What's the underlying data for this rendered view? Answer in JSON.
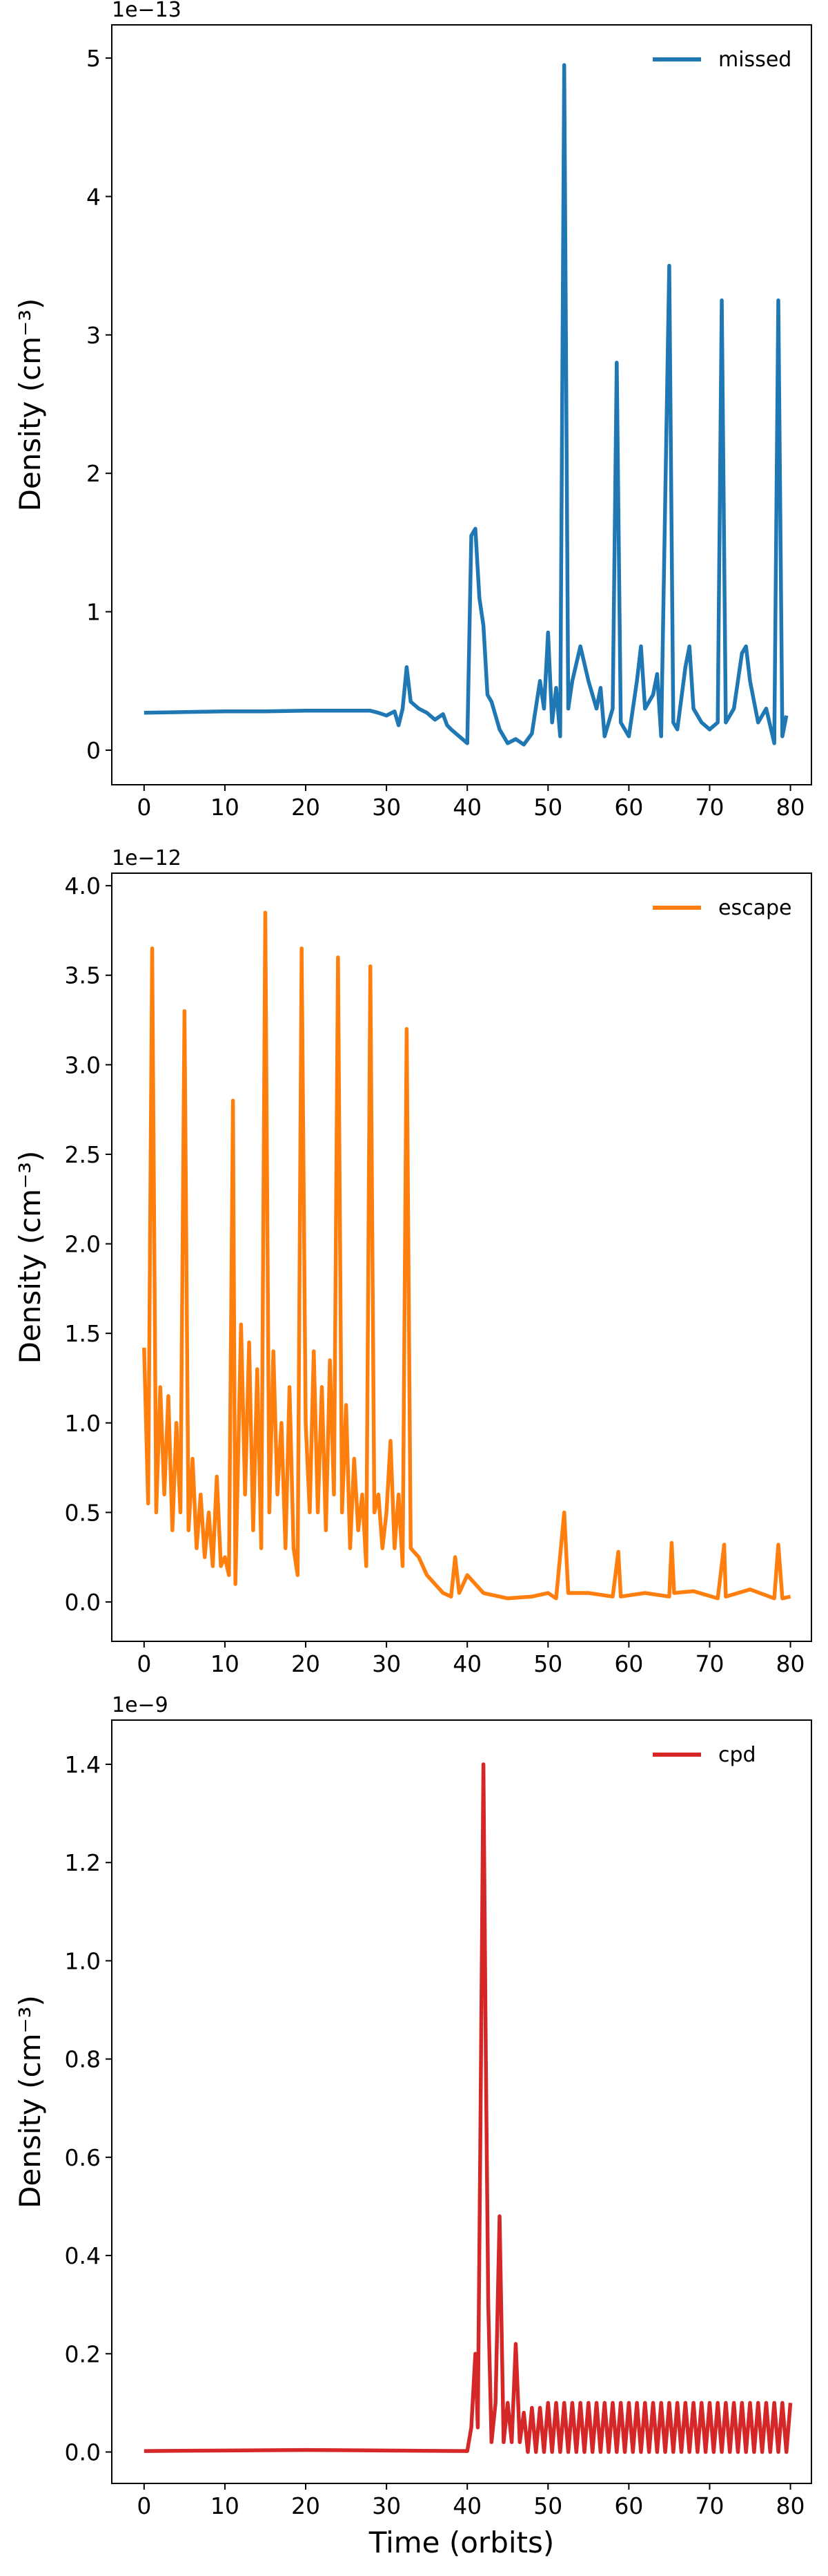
{
  "chart_data": [
    {
      "type": "line",
      "offset_label": "1e−13",
      "ylabel": "Density (cm⁻³)",
      "legend": "upper right",
      "x": [
        0,
        5,
        10,
        15,
        20,
        25,
        28,
        29,
        30,
        31,
        31.5,
        32,
        32.5,
        33,
        34,
        35,
        36,
        37,
        37.5,
        38,
        39,
        40,
        40.5,
        41,
        41.5,
        42,
        42.5,
        43,
        44,
        45,
        46,
        47,
        48,
        49,
        49.5,
        50,
        50.5,
        51,
        51.5,
        52,
        52.5,
        53,
        54,
        55,
        56,
        56.5,
        57,
        58,
        58.5,
        59,
        60,
        61,
        61.5,
        62,
        63,
        63.5,
        64,
        65,
        65.5,
        66,
        67,
        67.5,
        68,
        69,
        70,
        71,
        71.5,
        72,
        73,
        74,
        74.5,
        75,
        76,
        77,
        78,
        78.5,
        79,
        79.5
      ],
      "series": [
        {
          "name": "missed",
          "color": "#1f77b4",
          "values": [
            0.27,
            0.275,
            0.28,
            0.28,
            0.285,
            0.285,
            0.285,
            0.27,
            0.25,
            0.28,
            0.18,
            0.3,
            0.6,
            0.35,
            0.3,
            0.27,
            0.22,
            0.26,
            0.18,
            0.15,
            0.1,
            0.05,
            1.55,
            1.6,
            1.1,
            0.9,
            0.4,
            0.35,
            0.15,
            0.05,
            0.08,
            0.04,
            0.12,
            0.5,
            0.3,
            0.85,
            0.2,
            0.45,
            0.1,
            4.95,
            0.3,
            0.5,
            0.75,
            0.5,
            0.3,
            0.45,
            0.1,
            0.3,
            2.8,
            0.2,
            0.1,
            0.5,
            0.75,
            0.3,
            0.4,
            0.55,
            0.1,
            3.5,
            0.2,
            0.15,
            0.6,
            0.75,
            0.3,
            0.2,
            0.15,
            0.2,
            3.25,
            0.2,
            0.3,
            0.7,
            0.75,
            0.5,
            0.2,
            0.3,
            0.05,
            3.25,
            0.1,
            0.25
          ]
        }
      ],
      "xlim": [
        -4,
        82.6
      ],
      "xticks": [
        0,
        10,
        20,
        30,
        40,
        50,
        60,
        70,
        80
      ],
      "ylim": [
        -0.25,
        5.24
      ],
      "yticks": [
        0,
        1,
        2,
        3,
        4,
        5
      ]
    },
    {
      "type": "line",
      "offset_label": "1e−12",
      "ylabel": "Density (cm⁻³)",
      "legend": "upper right",
      "x": [
        0,
        0.5,
        1,
        1.5,
        2,
        2.5,
        3,
        3.5,
        4,
        4.5,
        5,
        5.5,
        6,
        6.5,
        7,
        7.5,
        8,
        8.5,
        9,
        9.5,
        10,
        10.5,
        11,
        11.3,
        12,
        12.5,
        13,
        13.5,
        14,
        14.5,
        15,
        15.5,
        16,
        16.5,
        17,
        17.5,
        18,
        18.5,
        19,
        19.5,
        20,
        20.5,
        21,
        21.5,
        22,
        22.5,
        23,
        23.5,
        24,
        24.5,
        25,
        25.5,
        26,
        26.5,
        27,
        27.5,
        28,
        28.5,
        29,
        29.5,
        30,
        30.5,
        31,
        31.5,
        32,
        32.5,
        33,
        34,
        35,
        36,
        37,
        38,
        38.5,
        39,
        40,
        41,
        42,
        45,
        48,
        50,
        51,
        52,
        52.5,
        55,
        58,
        58.7,
        59,
        62,
        65,
        65.3,
        65.6,
        68,
        71,
        71.8,
        72,
        75,
        78,
        78.5,
        79,
        80
      ],
      "series": [
        {
          "name": "escape",
          "color": "#ff7f0e",
          "values": [
            1.42,
            0.55,
            3.65,
            0.5,
            1.2,
            0.6,
            1.15,
            0.4,
            1.0,
            0.5,
            3.3,
            0.4,
            0.8,
            0.3,
            0.6,
            0.25,
            0.5,
            0.2,
            0.7,
            0.2,
            0.25,
            0.15,
            2.8,
            0.1,
            1.55,
            0.6,
            1.45,
            0.4,
            1.3,
            0.3,
            3.85,
            0.5,
            1.4,
            0.6,
            1.0,
            0.3,
            1.2,
            0.3,
            0.15,
            3.65,
            1.0,
            0.5,
            1.4,
            0.5,
            1.2,
            0.4,
            1.35,
            0.6,
            3.6,
            0.5,
            1.1,
            0.3,
            0.8,
            0.4,
            0.6,
            0.2,
            3.55,
            0.5,
            0.6,
            0.3,
            0.5,
            0.9,
            0.3,
            0.6,
            0.2,
            3.2,
            0.3,
            0.25,
            0.15,
            0.1,
            0.05,
            0.03,
            0.25,
            0.05,
            0.15,
            0.1,
            0.05,
            0.02,
            0.03,
            0.05,
            0.02,
            0.5,
            0.05,
            0.05,
            0.03,
            0.28,
            0.03,
            0.05,
            0.03,
            0.33,
            0.05,
            0.06,
            0.02,
            0.32,
            0.03,
            0.07,
            0.02,
            0.32,
            0.02,
            0.03
          ]
        }
      ],
      "xlim": [
        -4,
        82.6
      ],
      "xticks": [
        0,
        10,
        20,
        30,
        40,
        50,
        60,
        70,
        80
      ],
      "ylim": [
        -0.22,
        4.07
      ],
      "yticks": [
        {
          "value": 0,
          "label": "0.0"
        },
        0.5,
        {
          "value": 1,
          "label": "1.0"
        },
        1.5,
        {
          "value": 2,
          "label": "2.0"
        },
        2.5,
        {
          "value": 3,
          "label": "3.0"
        },
        3.5,
        {
          "value": 4,
          "label": "4.0"
        }
      ]
    },
    {
      "type": "line",
      "offset_label": "1e−9",
      "ylabel": "Density (cm⁻³)",
      "xlabel": "Time (orbits)",
      "legend": "upper right",
      "x": [
        0,
        10,
        20,
        30,
        40,
        40.5,
        41,
        41.3,
        41.6,
        41.8,
        42,
        42.3,
        42.6,
        43,
        43.5,
        44,
        44.5,
        45,
        45.5,
        46,
        46.5,
        47,
        47.5,
        48,
        48.5,
        49,
        49.5,
        50,
        50.5,
        51,
        51.5,
        52,
        52.5,
        53,
        53.5,
        54,
        54.5,
        55,
        55.5,
        56,
        56.5,
        57,
        57.5,
        58,
        58.5,
        59,
        59.5,
        60,
        60.5,
        61,
        61.5,
        62,
        62.5,
        63,
        63.5,
        64,
        64.5,
        65,
        65.5,
        66,
        66.5,
        67,
        67.5,
        68,
        68.5,
        69,
        69.5,
        70,
        70.5,
        71,
        71.5,
        72,
        72.5,
        73,
        73.5,
        74,
        74.5,
        75,
        75.5,
        76,
        76.5,
        77,
        77.5,
        78,
        78.5,
        79,
        79.5,
        80
      ],
      "series": [
        {
          "name": "cpd",
          "color": "#d62728",
          "values": [
            0.002,
            0.003,
            0.004,
            0.003,
            0.002,
            0.05,
            0.2,
            0.05,
            0.6,
            1.0,
            1.4,
            0.8,
            0.3,
            0.02,
            0.1,
            0.48,
            0.02,
            0.1,
            0.02,
            0.22,
            0.02,
            0.08,
            0,
            0.09,
            0,
            0.09,
            0,
            0.1,
            0,
            0.1,
            0,
            0.1,
            0,
            0.1,
            0,
            0.1,
            0,
            0.1,
            0,
            0.1,
            0,
            0.1,
            0,
            0.1,
            0,
            0.1,
            0,
            0.1,
            0,
            0.1,
            0,
            0.1,
            0,
            0.1,
            0,
            0.1,
            0,
            0.1,
            0,
            0.1,
            0,
            0.1,
            0,
            0.1,
            0,
            0.1,
            0,
            0.1,
            0,
            0.1,
            0,
            0.1,
            0,
            0.1,
            0,
            0.1,
            0,
            0.1,
            0,
            0.1,
            0,
            0.1,
            0,
            0.1,
            0,
            0.1,
            0,
            0.1
          ]
        }
      ],
      "xlim": [
        -4,
        82.6
      ],
      "xticks": [
        0,
        10,
        20,
        30,
        40,
        50,
        60,
        70,
        80
      ],
      "ylim": [
        -0.064,
        1.49
      ],
      "yticks": [
        {
          "value": 0,
          "label": "0.0"
        },
        0.2,
        0.4,
        0.6,
        0.8,
        {
          "value": 1,
          "label": "1.0"
        },
        1.2,
        1.4
      ]
    }
  ]
}
